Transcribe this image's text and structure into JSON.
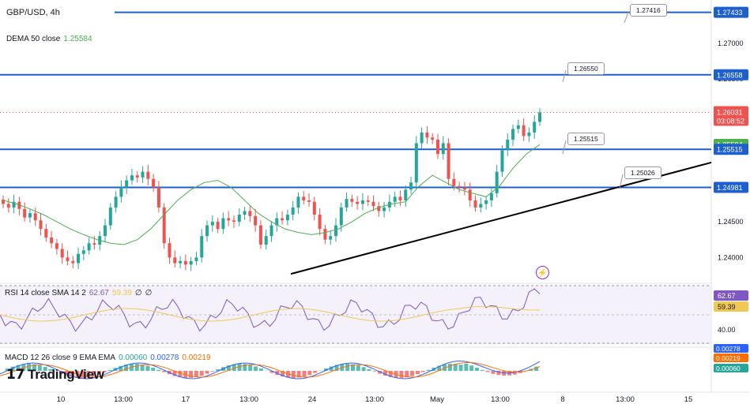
{
  "header": {
    "symbol": "GBP/USD, 4h"
  },
  "dema": {
    "label": "DEMA 50 close",
    "value": "1.25584"
  },
  "rsi": {
    "label": "RSI 14 close SMA 14 2",
    "value1": "62.67",
    "value2": "59.39",
    "value3": "∅",
    "value4": "∅"
  },
  "macd": {
    "label": "MACD 12 26 close 9 EMA EMA",
    "value1": "0.00060",
    "value2": "0.00278",
    "value3": "0.00219"
  },
  "logo": {
    "text": "TradingView"
  },
  "callouts": [
    "1.27416",
    "1.26550",
    "1.25515",
    "1.25026"
  ],
  "price_axis": {
    "ticks": [
      "1.27000",
      "1.26500",
      "1.25500",
      "1.24500",
      "1.24000"
    ],
    "tags": {
      "r1": "1.27433",
      "r2": "1.26558",
      "current_price": "1.26031",
      "countdown": "03:08:52",
      "dema": "1.25584",
      "r3": "1.25515",
      "r4": "1.24981"
    },
    "rsi_ticks": [
      "40.00"
    ],
    "rsi_tags": {
      "rsi": "62.67",
      "sma": "59.39"
    },
    "macd_tags": {
      "a": "0.00278",
      "b": "0.00219",
      "c": "0.00060"
    }
  },
  "time_axis": [
    "10",
    "13:00",
    "17",
    "13:00",
    "24",
    "13:00",
    "May",
    "13:00",
    "8",
    "13:00",
    "15"
  ],
  "colors": {
    "up": "#26a69a",
    "down": "#ef5350",
    "level": "#1e5fd0",
    "dema": "#4caf50",
    "rsi": "#7e57c2",
    "rsi_sma": "#f0c954",
    "macd": "#2962ff",
    "signal": "#ff6d00"
  },
  "chart_data": {
    "type": "candlestick",
    "title": "GBP/USD, 4h",
    "x_axis_labels": [
      "10",
      "13:00",
      "17",
      "13:00",
      "24",
      "13:00",
      "May",
      "13:00",
      "8",
      "13:00",
      "15"
    ],
    "ylim": [
      1.2365,
      1.2755
    ],
    "horizontal_levels": [
      1.27433,
      1.26558,
      1.25515,
      1.24981
    ],
    "trendline": {
      "from": [
        1.2377
      ],
      "to": [
        1.2533
      ],
      "label": "1.25026"
    },
    "last_price": 1.26031,
    "candles_close": [
      1.2475,
      1.247,
      1.2478,
      1.2468,
      1.2456,
      1.2462,
      1.2452,
      1.244,
      1.2428,
      1.242,
      1.2412,
      1.24,
      1.2395,
      1.2392,
      1.2405,
      1.241,
      1.242,
      1.2418,
      1.243,
      1.2445,
      1.247,
      1.2485,
      1.2498,
      1.2508,
      1.2515,
      1.2512,
      1.252,
      1.251,
      1.2498,
      1.247,
      1.242,
      1.24,
      1.2392,
      1.2395,
      1.239,
      1.2395,
      1.24,
      1.243,
      1.2445,
      1.245,
      1.244,
      1.2455,
      1.2452,
      1.245,
      1.246,
      1.2465,
      1.2458,
      1.2445,
      1.2418,
      1.243,
      1.2445,
      1.2455,
      1.2452,
      1.246,
      1.247,
      1.2485,
      1.248,
      1.2478,
      1.246,
      1.244,
      1.2425,
      1.243,
      1.2445,
      1.247,
      1.2482,
      1.2478,
      1.2475,
      1.248,
      1.2478,
      1.2472,
      1.2465,
      1.247,
      1.2478,
      1.2485,
      1.248,
      1.2495,
      1.2505,
      1.256,
      1.2575,
      1.2568,
      1.2565,
      1.2545,
      1.256,
      1.251,
      1.25,
      1.2498,
      1.2495,
      1.248,
      1.247,
      1.2475,
      1.248,
      1.249,
      1.252,
      1.255,
      1.2565,
      1.258,
      1.2585,
      1.257,
      1.2575,
      1.259,
      1.2603
    ],
    "dema_50": [
      1.248,
      1.2475,
      1.2468,
      1.246,
      1.245,
      1.244,
      1.2432,
      1.2425,
      1.242,
      1.2418,
      1.2425,
      1.244,
      1.246,
      1.248,
      1.2495,
      1.2505,
      1.2508,
      1.2498,
      1.248,
      1.2462,
      1.245,
      1.244,
      1.2435,
      1.2432,
      1.2435,
      1.244,
      1.245,
      1.2462,
      1.247,
      1.2475,
      1.2478,
      1.25,
      1.2515,
      1.2505,
      1.2495,
      1.249,
      1.2485,
      1.25,
      1.2525,
      1.2545,
      1.2558
    ],
    "rsi_panel": {
      "rsi_last": 62.67,
      "sma_last": 59.39,
      "ref_line": 40.0
    },
    "macd_panel": {
      "macd_last": 0.00278,
      "signal_last": 0.00219,
      "histogram_last": 0.0006
    }
  }
}
